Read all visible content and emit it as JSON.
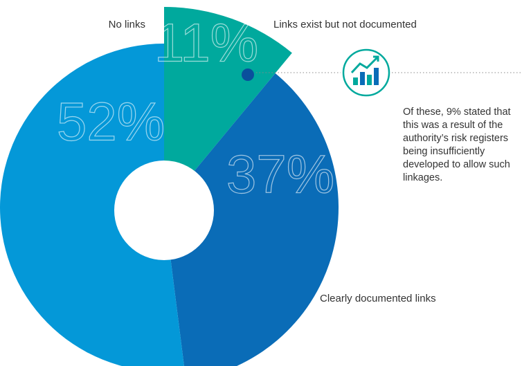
{
  "chart_data": {
    "type": "pie",
    "categories": [
      "Links exist but not documented",
      "Clearly documented links",
      "No links"
    ],
    "values": [
      11,
      37,
      52
    ],
    "value_labels": [
      "11%",
      "37%",
      "52%"
    ],
    "colors": [
      "#00a99d",
      "#0a6cb7",
      "#0498d8"
    ],
    "annotation": "Of these, 9% stated that this was a result of the authority’s risk registers being insufficiently developed to allow such linkages."
  }
}
